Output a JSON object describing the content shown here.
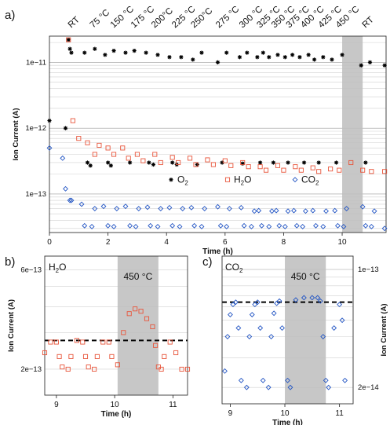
{
  "panel_labels": {
    "a": "a)",
    "b": "b)",
    "c": "c)"
  },
  "colors": {
    "o2": "#000000",
    "h2o": "#e8553b",
    "co2": "#2456c4",
    "highlight": "#bdbdbd",
    "dash": "#000000"
  },
  "chart_data": [
    {
      "type": "scatter",
      "panel": "a",
      "xlabel": "Time (h)",
      "ylabel": "Ion Current (A)",
      "y_scale": "log",
      "xlim": [
        0,
        11.5
      ],
      "ylim": [
        2.6e-14,
        2.5e-11
      ],
      "x_ticks": [
        0,
        2,
        4,
        6,
        8,
        10
      ],
      "y_ticks": [
        {
          "value": 1e-11,
          "label": "1e−11"
        },
        {
          "value": 1e-12,
          "label": "1e−12"
        },
        {
          "value": 1e-13,
          "label": "1e−13"
        }
      ],
      "grid": "horizontal",
      "highlight_band": [
        10.0,
        10.7
      ],
      "temperature_labels": [
        {
          "label": "RT",
          "x": 0.85
        },
        {
          "label": "75 °C",
          "x": 1.6
        },
        {
          "label": "150 °C",
          "x": 2.3
        },
        {
          "label": "175 °C",
          "x": 3.0
        },
        {
          "label": "200°C",
          "x": 3.7
        },
        {
          "label": "225 °C",
          "x": 4.4
        },
        {
          "label": "250°C",
          "x": 5.05
        },
        {
          "label": "275 °C",
          "x": 5.9
        },
        {
          "label": "300 °C",
          "x": 6.7
        },
        {
          "label": "325 °C",
          "x": 7.3
        },
        {
          "label": "350 °C",
          "x": 7.8
        },
        {
          "label": "375 °C",
          "x": 8.3
        },
        {
          "label": "400 °C",
          "x": 8.8
        },
        {
          "label": "425 °C",
          "x": 9.4
        },
        {
          "label": "450 °C",
          "x": 10.0
        },
        {
          "label": "RT",
          "x": 10.9
        }
      ],
      "legend": [
        {
          "symbol": "*",
          "label": "O",
          "subscript": "2"
        },
        {
          "symbol": "□",
          "label": "H",
          "subscript": "2",
          "suffix": "O"
        },
        {
          "symbol": "◇",
          "label": "CO",
          "subscript": "2"
        }
      ],
      "legend_position": "middle",
      "series": [
        {
          "key": "o2",
          "marker": "asterisk",
          "x": [
            0,
            0.55,
            0.65,
            0.7,
            0.75,
            1.2,
            1.3,
            1.4,
            1.55,
            1.9,
            2.0,
            2.1,
            2.2,
            2.6,
            2.75,
            2.9,
            3.3,
            3.4,
            3.55,
            3.7,
            4.1,
            4.2,
            4.35,
            4.5,
            4.9,
            5.05,
            5.2,
            5.75,
            5.9,
            6.05,
            6.5,
            6.6,
            6.75,
            7.1,
            7.2,
            7.3,
            7.5,
            7.65,
            7.8,
            8.05,
            8.15,
            8.3,
            8.55,
            8.7,
            8.85,
            9.05,
            9.2,
            9.35,
            9.65,
            9.8,
            10.0,
            10.65,
            10.8,
            10.95,
            11.45
          ],
          "y": [
            1.3e-12,
            1e-12,
            2.2e-11,
            1.6e-11,
            1.4e-11,
            1.4e-11,
            3e-13,
            2.7e-13,
            1.6e-11,
            1.3e-11,
            3e-13,
            2.7e-13,
            1.5e-11,
            1.4e-11,
            3e-13,
            1.5e-11,
            1.4e-11,
            3e-13,
            2.8e-13,
            1.3e-11,
            1.2e-11,
            3e-13,
            2.8e-13,
            1.2e-11,
            1.1e-11,
            2.8e-13,
            1.4e-11,
            1e-11,
            3e-13,
            1.4e-11,
            1.2e-11,
            2.9e-13,
            1.4e-11,
            1.2e-11,
            3e-13,
            1.4e-11,
            1.2e-11,
            3e-13,
            1.3e-11,
            1.2e-11,
            3e-13,
            1.3e-11,
            1.2e-11,
            3e-13,
            1.3e-11,
            1.1e-11,
            3e-13,
            1.2e-11,
            1.1e-11,
            3e-13,
            1.3e-11,
            9e-12,
            3e-13,
            1e-11,
            9e-12
          ]
        },
        {
          "key": "h2o",
          "marker": "square",
          "x": [
            0.65,
            0.8,
            1.0,
            1.3,
            1.55,
            1.7,
            2.0,
            2.2,
            2.5,
            2.7,
            3.0,
            3.2,
            3.6,
            3.8,
            4.2,
            4.4,
            4.8,
            5.0,
            5.4,
            5.6,
            6.0,
            6.2,
            6.6,
            6.8,
            7.2,
            7.4,
            7.8,
            8.0,
            8.4,
            8.6,
            9.0,
            9.2,
            9.6,
            9.9,
            10.3,
            10.7,
            11.0,
            11.45
          ],
          "y": [
            2.2e-11,
            1.3e-12,
            7e-13,
            6e-13,
            4e-13,
            5.5e-13,
            5e-13,
            4e-13,
            5e-13,
            3.5e-13,
            4e-13,
            3.2e-13,
            4e-13,
            3e-13,
            3.6e-13,
            3e-13,
            3.5e-13,
            2.8e-13,
            3.3e-13,
            2.8e-13,
            3.2e-13,
            2.7e-13,
            3e-13,
            2.6e-13,
            2.6e-13,
            2.3e-13,
            2.7e-13,
            2.3e-13,
            2.6e-13,
            2.3e-13,
            2.5e-13,
            2.2e-13,
            2.4e-13,
            2.3e-13,
            3e-13,
            2.3e-13,
            2.2e-13,
            2.2e-13
          ]
        },
        {
          "key": "co2",
          "marker": "diamond",
          "x": [
            0,
            0.45,
            0.55,
            0.7,
            0.75,
            1.1,
            1.2,
            1.45,
            1.55,
            1.85,
            2.0,
            2.2,
            2.3,
            2.6,
            2.75,
            2.95,
            3.05,
            3.35,
            3.45,
            3.7,
            3.8,
            4.1,
            4.2,
            4.45,
            4.55,
            4.85,
            4.95,
            5.2,
            5.3,
            5.75,
            5.85,
            6.05,
            6.15,
            6.55,
            6.65,
            6.9,
            7.0,
            7.15,
            7.25,
            7.5,
            7.6,
            7.75,
            7.85,
            8.05,
            8.15,
            8.35,
            8.45,
            8.65,
            8.75,
            9.0,
            9.1,
            9.35,
            9.45,
            9.75,
            9.85,
            10.05,
            10.15,
            10.7,
            10.8,
            11.0,
            11.1,
            11.45
          ],
          "y": [
            5e-13,
            3.5e-13,
            1.2e-13,
            8e-14,
            8e-14,
            7e-14,
            3.3e-14,
            3.2e-14,
            6e-14,
            6.5e-14,
            3.3e-14,
            3.2e-14,
            6e-14,
            6.5e-14,
            3.3e-14,
            3.2e-14,
            6e-14,
            6.3e-14,
            3.3e-14,
            3.2e-14,
            6e-14,
            6.2e-14,
            3.3e-14,
            3.2e-14,
            6e-14,
            6.2e-14,
            3.3e-14,
            3.2e-14,
            6e-14,
            6.4e-14,
            3.3e-14,
            3.2e-14,
            6e-14,
            6.2e-14,
            3.3e-14,
            3.2e-14,
            5.5e-14,
            5.6e-14,
            3.3e-14,
            3.2e-14,
            5.5e-14,
            5.6e-14,
            3.3e-14,
            3.2e-14,
            5.5e-14,
            5.6e-14,
            3.3e-14,
            3.2e-14,
            5.5e-14,
            5.6e-14,
            3.3e-14,
            3.2e-14,
            5.5e-14,
            5.6e-14,
            3.3e-14,
            3.2e-14,
            6e-14,
            6.4e-14,
            3.3e-14,
            3.2e-14,
            5.5e-14,
            3e-14
          ]
        }
      ]
    },
    {
      "type": "scatter",
      "panel": "b",
      "species": {
        "main": "H",
        "subscript": "2",
        "suffix": "O"
      },
      "xlabel": "Time (h)",
      "ylabel": "Ion Current (A)",
      "y_scale": "log",
      "xlim": [
        8.8,
        11.25
      ],
      "ylim": [
        1.5e-13,
        7e-13
      ],
      "x_ticks": [
        9,
        10,
        11
      ],
      "y_ticks": [
        {
          "value": 6e-13,
          "label": "6e−13"
        },
        {
          "value": 2e-13,
          "label": "2e−13"
        }
      ],
      "highlight_band": [
        10.05,
        10.75
      ],
      "band_label": "450 °C",
      "reference_line_y": 2.75e-13,
      "series": [
        {
          "key": "h2o",
          "marker": "square",
          "x": [
            8.8,
            8.9,
            9.0,
            9.05,
            9.1,
            9.2,
            9.25,
            9.35,
            9.45,
            9.5,
            9.55,
            9.65,
            9.7,
            9.8,
            9.9,
            9.95,
            10.05,
            10.15,
            10.25,
            10.35,
            10.45,
            10.55,
            10.65,
            10.7,
            10.75,
            10.8,
            10.85,
            10.95,
            11.05,
            11.15,
            11.25
          ],
          "y": [
            2.4e-13,
            2.7e-13,
            2.7e-13,
            2.3e-13,
            2.05e-13,
            2e-13,
            2.3e-13,
            2.75e-13,
            2.7e-13,
            2.3e-13,
            2.05e-13,
            2e-13,
            2.3e-13,
            2.7e-13,
            2.7e-13,
            2.3e-13,
            2.1e-13,
            3e-13,
            3.7e-13,
            3.9e-13,
            3.8e-13,
            3.5e-13,
            3.2e-13,
            2.6e-13,
            2.05e-13,
            2e-13,
            2.3e-13,
            2.7e-13,
            2.4e-13,
            2e-13,
            2e-13
          ]
        }
      ]
    },
    {
      "type": "scatter",
      "panel": "c",
      "species": {
        "main": "CO",
        "subscript": "2"
      },
      "xlabel": "Time (h)",
      "ylabel": "Ion Current (A)",
      "y_axis_side": "right",
      "y_scale": "log",
      "xlim": [
        8.85,
        11.25
      ],
      "ylim": [
        1.6e-14,
        1.2e-13
      ],
      "x_ticks": [
        9,
        10,
        11
      ],
      "y_ticks": [
        {
          "value": 1e-13,
          "label": "1e−13"
        },
        {
          "value": 2e-14,
          "label": "2e−14"
        }
      ],
      "highlight_band": [
        10.0,
        10.75
      ],
      "band_label": "450 °C",
      "reference_line_y": 6.4e-14,
      "series": [
        {
          "key": "co2",
          "marker": "diamond",
          "x": [
            8.9,
            8.95,
            9.0,
            9.05,
            9.1,
            9.15,
            9.2,
            9.3,
            9.35,
            9.4,
            9.45,
            9.5,
            9.55,
            9.6,
            9.7,
            9.75,
            9.8,
            9.85,
            9.9,
            9.95,
            10.05,
            10.1,
            10.2,
            10.35,
            10.5,
            10.6,
            10.65,
            10.7,
            10.75,
            10.8,
            10.9,
            11.0,
            11.05,
            11.1
          ],
          "y": [
            2.5e-14,
            4e-14,
            5.4e-14,
            6.2e-14,
            6.4e-14,
            4.5e-14,
            2.2e-14,
            2e-14,
            4e-14,
            5.4e-14,
            6.2e-14,
            6.4e-14,
            4.5e-14,
            2.2e-14,
            2e-14,
            4e-14,
            5.5e-14,
            6.3e-14,
            6.5e-14,
            4.5e-14,
            2.2e-14,
            2e-14,
            6.6e-14,
            6.8e-14,
            6.8e-14,
            6.8e-14,
            6.5e-14,
            4e-14,
            2.2e-14,
            2e-14,
            4.5e-14,
            6.2e-14,
            5e-14,
            2.2e-14
          ]
        }
      ]
    }
  ]
}
